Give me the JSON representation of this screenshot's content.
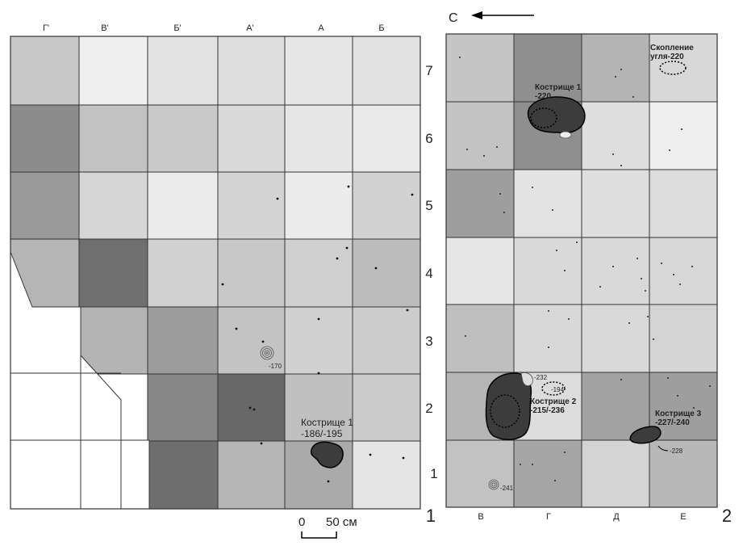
{
  "left_plan": {
    "columns": [
      "Г'",
      "В'",
      "Б'",
      "А'",
      "А",
      "Б"
    ],
    "rows": [
      "7",
      "6",
      "5",
      "4",
      "3",
      "2",
      "1"
    ],
    "figure_number": "1",
    "scale_bar": {
      "zero": "0",
      "label": "50 см"
    },
    "hearth": {
      "title": "Кострище 1",
      "depth": "-186/-195"
    },
    "spiral_depth": "-170"
  },
  "right_plan": {
    "north_label": "С",
    "columns": [
      "В",
      "Г",
      "Д",
      "Е"
    ],
    "figure_number": "2",
    "hearth1": {
      "title": "Кострище 1",
      "depth": "-220"
    },
    "charcoal": {
      "title": "Скопление",
      "depth": "угля-220"
    },
    "hearth2": {
      "title": "Кострище 2",
      "depth": "-215/-236",
      "mark_a": "-232",
      "mark_b": "-194"
    },
    "hearth3": {
      "title": "Кострище 3",
      "depth": "-227/-240",
      "mark": "-228"
    },
    "spiral_depth": "-241"
  }
}
